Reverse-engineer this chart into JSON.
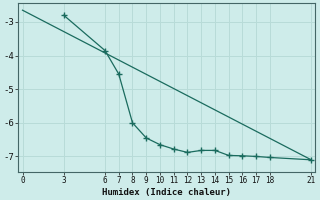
{
  "line1_x": [
    3,
    6,
    7,
    8,
    9,
    10,
    11,
    12,
    13,
    14,
    15,
    16,
    17,
    18,
    21
  ],
  "line1_y": [
    -2.8,
    -3.85,
    -4.55,
    -6.0,
    -6.45,
    -6.65,
    -6.78,
    -6.88,
    -6.82,
    -6.82,
    -6.97,
    -6.98,
    -7.0,
    -7.03,
    -7.1
  ],
  "line2_x": [
    0,
    21
  ],
  "line2_y": [
    -2.65,
    -7.1
  ],
  "color": "#1a6b5e",
  "bg_color": "#ceecea",
  "grid_color": "#b8dbd8",
  "xlabel": "Humidex (Indice chaleur)",
  "yticks": [
    -3,
    -4,
    -5,
    -6,
    -7
  ],
  "xticks": [
    0,
    3,
    6,
    7,
    8,
    9,
    10,
    11,
    12,
    13,
    14,
    15,
    16,
    17,
    18,
    21
  ],
  "xlim": [
    -0.3,
    21.3
  ],
  "ylim": [
    -7.45,
    -2.45
  ]
}
